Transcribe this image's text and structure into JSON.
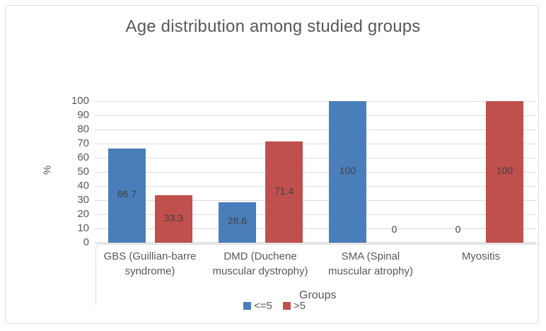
{
  "chart_data": {
    "type": "bar",
    "title": "Age distribution among studied groups",
    "categories": [
      "GBS (Guillian-barre syndrome)",
      "DMD (Duchene muscular dystrophy)",
      "SMA (Spinal muscular atrophy)",
      "Myositis"
    ],
    "category_lines": [
      [
        "GBS (Guillian-barre",
        "syndrome)"
      ],
      [
        "DMD (Duchene",
        "muscular dystrophy)"
      ],
      [
        "SMA (Spinal",
        "muscular atrophy)"
      ],
      [
        "Myositis"
      ]
    ],
    "series": [
      {
        "name": "<=5",
        "color": "#4a7ebb",
        "values": [
          66.7,
          28.6,
          100,
          0
        ]
      },
      {
        "name": ">5",
        "color": "#c0504d",
        "values": [
          33.3,
          71.4,
          0,
          100
        ]
      }
    ],
    "data_labels": [
      [
        "66.7",
        "28.6",
        "100",
        "0"
      ],
      [
        "33.3",
        "71.4",
        "0",
        "100"
      ]
    ],
    "xlabel": "Groups",
    "ylabel": "%",
    "ylim": [
      0,
      100
    ],
    "ytick_step": 10,
    "yticks": [
      0,
      10,
      20,
      30,
      40,
      50,
      60,
      70,
      80,
      90,
      100
    ],
    "grid": true,
    "legend_position": "bottom",
    "text_color": "#595959",
    "data_label_color": "#404040",
    "gridline_color": "#dcdcdc",
    "axis_color": "#bfbfbf",
    "frame_border_color": "#d9d9d9"
  }
}
